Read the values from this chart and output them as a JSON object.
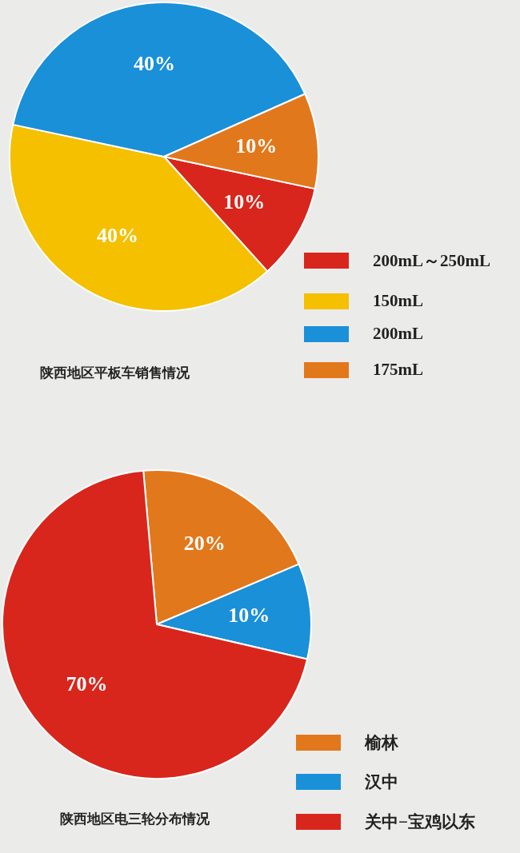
{
  "chart_data": [
    {
      "type": "pie",
      "title": "陕西地区平板车销售情况",
      "categories": [
        "200mL～250mL",
        "150mL",
        "200mL",
        "175mL"
      ],
      "values": [
        10,
        40,
        40,
        10
      ],
      "colors": [
        "#d8261d",
        "#f4c000",
        "#1a90d8",
        "#e2781c"
      ],
      "value_labels": [
        "10%",
        "40%",
        "40%",
        "10%"
      ],
      "legend": "bottom right"
    },
    {
      "type": "pie",
      "title": "陕西地区电三轮分布情况",
      "categories": [
        "榆林",
        "汉中",
        "关中−宝鸡以东"
      ],
      "values": [
        20,
        10,
        70
      ],
      "colors": [
        "#e2781c",
        "#1a90d8",
        "#d8261d"
      ],
      "value_labels": [
        "20%",
        "10%",
        "70%"
      ],
      "legend": "bottom right"
    }
  ]
}
